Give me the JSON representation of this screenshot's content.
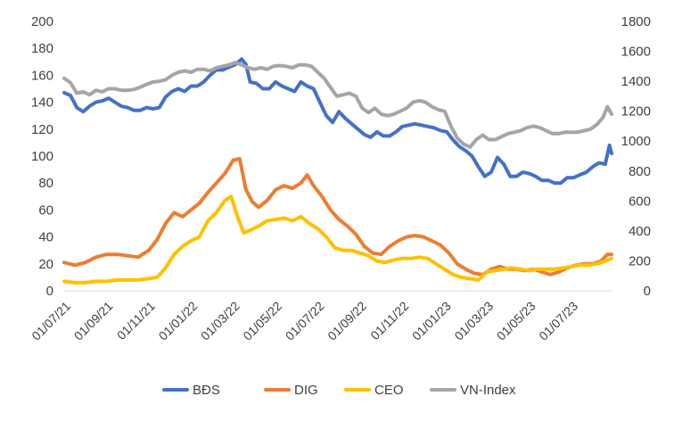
{
  "chart_data": {
    "type": "line",
    "title": "",
    "xlabel": "",
    "ylabel": "",
    "x_tick_labels": [
      "01/07/21",
      "01/09/21",
      "01/11/21",
      "01/01/22",
      "01/03/22",
      "01/05/22",
      "01/07/22",
      "01/09/22",
      "01/11/22",
      "01/01/23",
      "01/03/23",
      "01/05/23",
      "01/07/23"
    ],
    "x_range": [
      0,
      25.9
    ],
    "y_left": {
      "min": 0,
      "max": 200,
      "step": 20,
      "labels": [
        "0",
        "20",
        "40",
        "60",
        "80",
        "100",
        "120",
        "140",
        "160",
        "180",
        "200"
      ]
    },
    "y_right": {
      "min": 0,
      "max": 1800,
      "step": 200,
      "labels": [
        "0",
        "200",
        "400",
        "600",
        "800",
        "1000",
        "1200",
        "1400",
        "1600",
        "1800"
      ]
    },
    "x_unit": "months since 01/07/21",
    "legend_position": "bottom",
    "series": [
      {
        "name": "BĐS",
        "color": "#4472C4",
        "axis": "left",
        "points": [
          [
            0,
            147
          ],
          [
            0.3,
            145
          ],
          [
            0.6,
            136
          ],
          [
            0.9,
            133
          ],
          [
            1.2,
            137
          ],
          [
            1.5,
            140
          ],
          [
            1.8,
            141
          ],
          [
            2.1,
            143
          ],
          [
            2.4,
            140
          ],
          [
            2.7,
            137
          ],
          [
            3.0,
            136
          ],
          [
            3.3,
            134
          ],
          [
            3.6,
            134
          ],
          [
            3.9,
            136
          ],
          [
            4.2,
            135
          ],
          [
            4.5,
            136
          ],
          [
            4.8,
            144
          ],
          [
            5.1,
            148
          ],
          [
            5.4,
            150
          ],
          [
            5.7,
            148
          ],
          [
            6.0,
            152
          ],
          [
            6.3,
            152
          ],
          [
            6.6,
            155
          ],
          [
            6.9,
            160
          ],
          [
            7.2,
            164
          ],
          [
            7.5,
            164
          ],
          [
            7.8,
            166
          ],
          [
            8.1,
            168
          ],
          [
            8.4,
            172
          ],
          [
            8.6,
            168
          ],
          [
            8.8,
            155
          ],
          [
            9.1,
            154
          ],
          [
            9.4,
            150
          ],
          [
            9.7,
            150
          ],
          [
            10.0,
            155
          ],
          [
            10.3,
            152
          ],
          [
            10.6,
            150
          ],
          [
            10.9,
            148
          ],
          [
            11.2,
            155
          ],
          [
            11.5,
            152
          ],
          [
            11.8,
            150
          ],
          [
            12.1,
            140
          ],
          [
            12.4,
            130
          ],
          [
            12.7,
            125
          ],
          [
            13.0,
            133
          ],
          [
            13.3,
            128
          ],
          [
            13.6,
            124
          ],
          [
            13.9,
            120
          ],
          [
            14.2,
            116
          ],
          [
            14.5,
            114
          ],
          [
            14.8,
            118
          ],
          [
            15.1,
            115
          ],
          [
            15.4,
            115
          ],
          [
            15.7,
            118
          ],
          [
            16.0,
            122
          ],
          [
            16.3,
            123
          ],
          [
            16.6,
            124
          ],
          [
            16.9,
            123
          ],
          [
            17.2,
            122
          ],
          [
            17.5,
            121
          ],
          [
            17.8,
            119
          ],
          [
            18.1,
            118
          ],
          [
            18.4,
            112
          ],
          [
            18.7,
            107
          ],
          [
            19.0,
            104
          ],
          [
            19.3,
            100
          ],
          [
            19.6,
            92
          ],
          [
            19.9,
            85
          ],
          [
            20.2,
            88
          ],
          [
            20.5,
            99
          ],
          [
            20.8,
            94
          ],
          [
            21.1,
            85
          ],
          [
            21.4,
            85
          ],
          [
            21.7,
            88
          ],
          [
            22.0,
            87
          ],
          [
            22.3,
            85
          ],
          [
            22.6,
            82
          ],
          [
            22.9,
            82
          ],
          [
            23.2,
            80
          ],
          [
            23.5,
            80
          ],
          [
            23.8,
            84
          ],
          [
            24.1,
            84
          ],
          [
            24.4,
            86
          ],
          [
            24.7,
            88
          ],
          [
            25.0,
            92
          ],
          [
            25.3,
            95
          ],
          [
            25.6,
            94
          ],
          [
            25.8,
            108
          ],
          [
            25.9,
            102
          ]
        ]
      },
      {
        "name": "DIG",
        "color": "#ED7D31",
        "axis": "left",
        "points": [
          [
            0,
            21
          ],
          [
            0.5,
            19
          ],
          [
            1.0,
            21
          ],
          [
            1.5,
            25
          ],
          [
            2.0,
            27
          ],
          [
            2.5,
            27
          ],
          [
            3.0,
            26
          ],
          [
            3.5,
            25
          ],
          [
            4.0,
            30
          ],
          [
            4.4,
            38
          ],
          [
            4.8,
            50
          ],
          [
            5.2,
            58
          ],
          [
            5.6,
            55
          ],
          [
            6.0,
            60
          ],
          [
            6.4,
            65
          ],
          [
            6.8,
            73
          ],
          [
            7.2,
            80
          ],
          [
            7.6,
            87
          ],
          [
            8.0,
            97
          ],
          [
            8.3,
            98
          ],
          [
            8.6,
            75
          ],
          [
            8.9,
            66
          ],
          [
            9.2,
            62
          ],
          [
            9.6,
            67
          ],
          [
            10.0,
            75
          ],
          [
            10.4,
            78
          ],
          [
            10.8,
            76
          ],
          [
            11.2,
            80
          ],
          [
            11.5,
            86
          ],
          [
            11.8,
            78
          ],
          [
            12.2,
            70
          ],
          [
            12.6,
            60
          ],
          [
            13.0,
            53
          ],
          [
            13.4,
            48
          ],
          [
            13.8,
            42
          ],
          [
            14.2,
            33
          ],
          [
            14.6,
            28
          ],
          [
            15.0,
            27
          ],
          [
            15.4,
            33
          ],
          [
            15.8,
            37
          ],
          [
            16.2,
            40
          ],
          [
            16.6,
            41
          ],
          [
            17.0,
            40
          ],
          [
            17.4,
            37
          ],
          [
            17.8,
            34
          ],
          [
            18.2,
            28
          ],
          [
            18.6,
            20
          ],
          [
            19.0,
            16
          ],
          [
            19.4,
            13
          ],
          [
            19.8,
            12
          ],
          [
            20.2,
            16
          ],
          [
            20.6,
            18
          ],
          [
            21.0,
            16
          ],
          [
            21.4,
            16
          ],
          [
            21.8,
            15
          ],
          [
            22.2,
            16
          ],
          [
            22.6,
            14
          ],
          [
            23.0,
            12
          ],
          [
            23.4,
            14
          ],
          [
            23.8,
            17
          ],
          [
            24.2,
            19
          ],
          [
            24.6,
            20
          ],
          [
            25.0,
            20
          ],
          [
            25.4,
            22
          ],
          [
            25.7,
            27
          ],
          [
            25.9,
            27
          ]
        ]
      },
      {
        "name": "CEO",
        "color": "#FFC000",
        "axis": "left",
        "points": [
          [
            0,
            7
          ],
          [
            0.5,
            6
          ],
          [
            1.0,
            6
          ],
          [
            1.5,
            7
          ],
          [
            2.0,
            7
          ],
          [
            2.5,
            8
          ],
          [
            3.0,
            8
          ],
          [
            3.5,
            8
          ],
          [
            4.0,
            9
          ],
          [
            4.4,
            10
          ],
          [
            4.8,
            17
          ],
          [
            5.2,
            27
          ],
          [
            5.6,
            33
          ],
          [
            6.0,
            37
          ],
          [
            6.4,
            40
          ],
          [
            6.8,
            52
          ],
          [
            7.2,
            58
          ],
          [
            7.6,
            67
          ],
          [
            7.9,
            70
          ],
          [
            8.2,
            55
          ],
          [
            8.5,
            43
          ],
          [
            8.8,
            45
          ],
          [
            9.2,
            48
          ],
          [
            9.6,
            52
          ],
          [
            10.0,
            53
          ],
          [
            10.4,
            54
          ],
          [
            10.8,
            52
          ],
          [
            11.2,
            55
          ],
          [
            11.6,
            50
          ],
          [
            12.0,
            46
          ],
          [
            12.4,
            40
          ],
          [
            12.8,
            32
          ],
          [
            13.2,
            30
          ],
          [
            13.6,
            30
          ],
          [
            14.0,
            28
          ],
          [
            14.4,
            26
          ],
          [
            14.8,
            22
          ],
          [
            15.2,
            21
          ],
          [
            15.6,
            23
          ],
          [
            16.0,
            24
          ],
          [
            16.4,
            24
          ],
          [
            16.8,
            25
          ],
          [
            17.2,
            24
          ],
          [
            17.6,
            20
          ],
          [
            18.0,
            16
          ],
          [
            18.4,
            12
          ],
          [
            18.8,
            10
          ],
          [
            19.2,
            9
          ],
          [
            19.6,
            8
          ],
          [
            20.0,
            14
          ],
          [
            20.4,
            15
          ],
          [
            20.8,
            16
          ],
          [
            21.2,
            17
          ],
          [
            21.6,
            16
          ],
          [
            22.0,
            15
          ],
          [
            22.4,
            16
          ],
          [
            22.8,
            16
          ],
          [
            23.2,
            16
          ],
          [
            23.6,
            17
          ],
          [
            24.0,
            18
          ],
          [
            24.4,
            19
          ],
          [
            24.8,
            19
          ],
          [
            25.2,
            20
          ],
          [
            25.6,
            22
          ],
          [
            25.9,
            24
          ]
        ]
      },
      {
        "name": "VN-Index",
        "color": "#A5A5A5",
        "axis": "right",
        "points": [
          [
            0,
            1420
          ],
          [
            0.3,
            1390
          ],
          [
            0.6,
            1320
          ],
          [
            0.9,
            1330
          ],
          [
            1.2,
            1310
          ],
          [
            1.5,
            1340
          ],
          [
            1.8,
            1330
          ],
          [
            2.1,
            1350
          ],
          [
            2.4,
            1350
          ],
          [
            2.7,
            1340
          ],
          [
            3.0,
            1340
          ],
          [
            3.3,
            1345
          ],
          [
            3.6,
            1360
          ],
          [
            3.9,
            1380
          ],
          [
            4.2,
            1395
          ],
          [
            4.5,
            1400
          ],
          [
            4.8,
            1410
          ],
          [
            5.1,
            1440
          ],
          [
            5.4,
            1460
          ],
          [
            5.7,
            1470
          ],
          [
            6.0,
            1460
          ],
          [
            6.3,
            1480
          ],
          [
            6.6,
            1480
          ],
          [
            6.9,
            1470
          ],
          [
            7.2,
            1490
          ],
          [
            7.5,
            1500
          ],
          [
            7.8,
            1510
          ],
          [
            8.1,
            1525
          ],
          [
            8.4,
            1510
          ],
          [
            8.7,
            1490
          ],
          [
            9.0,
            1480
          ],
          [
            9.3,
            1490
          ],
          [
            9.6,
            1480
          ],
          [
            9.9,
            1500
          ],
          [
            10.2,
            1505
          ],
          [
            10.5,
            1500
          ],
          [
            10.8,
            1490
          ],
          [
            11.1,
            1510
          ],
          [
            11.4,
            1510
          ],
          [
            11.7,
            1500
          ],
          [
            12.0,
            1460
          ],
          [
            12.3,
            1420
          ],
          [
            12.6,
            1360
          ],
          [
            12.9,
            1300
          ],
          [
            13.2,
            1310
          ],
          [
            13.5,
            1320
          ],
          [
            13.8,
            1300
          ],
          [
            14.1,
            1220
          ],
          [
            14.4,
            1190
          ],
          [
            14.7,
            1220
          ],
          [
            15.0,
            1180
          ],
          [
            15.3,
            1170
          ],
          [
            15.6,
            1180
          ],
          [
            15.9,
            1200
          ],
          [
            16.2,
            1220
          ],
          [
            16.5,
            1260
          ],
          [
            16.8,
            1270
          ],
          [
            17.1,
            1260
          ],
          [
            17.4,
            1230
          ],
          [
            17.7,
            1210
          ],
          [
            18.0,
            1200
          ],
          [
            18.3,
            1100
          ],
          [
            18.6,
            1020
          ],
          [
            18.9,
            980
          ],
          [
            19.2,
            960
          ],
          [
            19.5,
            1010
          ],
          [
            19.8,
            1040
          ],
          [
            20.1,
            1010
          ],
          [
            20.4,
            1010
          ],
          [
            20.7,
            1030
          ],
          [
            21.0,
            1050
          ],
          [
            21.3,
            1060
          ],
          [
            21.6,
            1070
          ],
          [
            21.9,
            1090
          ],
          [
            22.2,
            1100
          ],
          [
            22.5,
            1090
          ],
          [
            22.8,
            1070
          ],
          [
            23.1,
            1050
          ],
          [
            23.4,
            1050
          ],
          [
            23.7,
            1060
          ],
          [
            24.0,
            1060
          ],
          [
            24.3,
            1060
          ],
          [
            24.6,
            1070
          ],
          [
            24.9,
            1080
          ],
          [
            25.2,
            1110
          ],
          [
            25.5,
            1160
          ],
          [
            25.7,
            1230
          ],
          [
            25.9,
            1180
          ]
        ]
      }
    ]
  }
}
